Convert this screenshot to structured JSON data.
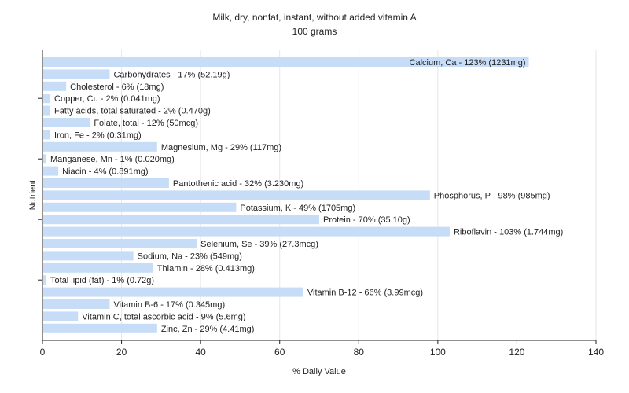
{
  "chart_data": {
    "type": "bar",
    "orientation": "horizontal",
    "title": "Milk, dry, nonfat, instant, without added vitamin A",
    "subtitle": "100 grams",
    "xlabel": "% Daily Value",
    "ylabel": "Nutrient",
    "xlim": [
      0,
      140
    ],
    "xticks": [
      0,
      20,
      40,
      60,
      80,
      100,
      120,
      140
    ],
    "grid": true,
    "bar_color": "#c6dcf7",
    "categories": [
      "Calcium, Ca",
      "Carbohydrates",
      "Cholesterol",
      "Copper, Cu",
      "Fatty acids, total saturated",
      "Folate, total",
      "Iron, Fe",
      "Magnesium, Mg",
      "Manganese, Mn",
      "Niacin",
      "Pantothenic acid",
      "Phosphorus, P",
      "Potassium, K",
      "Protein",
      "Riboflavin",
      "Selenium, Se",
      "Sodium, Na",
      "Thiamin",
      "Total lipid (fat)",
      "Vitamin B-12",
      "Vitamin B-6",
      "Vitamin C, total ascorbic acid",
      "Zinc, Zn"
    ],
    "values": [
      123,
      17,
      6,
      2,
      2,
      12,
      2,
      29,
      1,
      4,
      32,
      98,
      49,
      70,
      103,
      39,
      23,
      28,
      1,
      66,
      17,
      9,
      29
    ],
    "labels": [
      "Calcium, Ca - 123% (1231mg)",
      "Carbohydrates - 17% (52.19g)",
      "Cholesterol - 6% (18mg)",
      "Copper, Cu - 2% (0.041mg)",
      "Fatty acids, total saturated - 2% (0.470g)",
      "Folate, total - 12% (50mcg)",
      "Iron, Fe - 2% (0.31mg)",
      "Magnesium, Mg - 29% (117mg)",
      "Manganese, Mn - 1% (0.020mg)",
      "Niacin - 4% (0.891mg)",
      "Pantothenic acid - 32% (3.230mg)",
      "Phosphorus, P - 98% (985mg)",
      "Potassium, K - 49% (1705mg)",
      "Protein - 70% (35.10g)",
      "Riboflavin - 103% (1.744mg)",
      "Selenium, Se - 39% (27.3mcg)",
      "Sodium, Na - 23% (549mg)",
      "Thiamin - 28% (0.413mg)",
      "Total lipid (fat) - 1% (0.72g)",
      "Vitamin B-12 - 66% (3.99mcg)",
      "Vitamin B-6 - 17% (0.345mg)",
      "Vitamin C, total ascorbic acid - 9% (5.6mg)",
      "Zinc, Zn - 29% (4.41mg)"
    ]
  }
}
